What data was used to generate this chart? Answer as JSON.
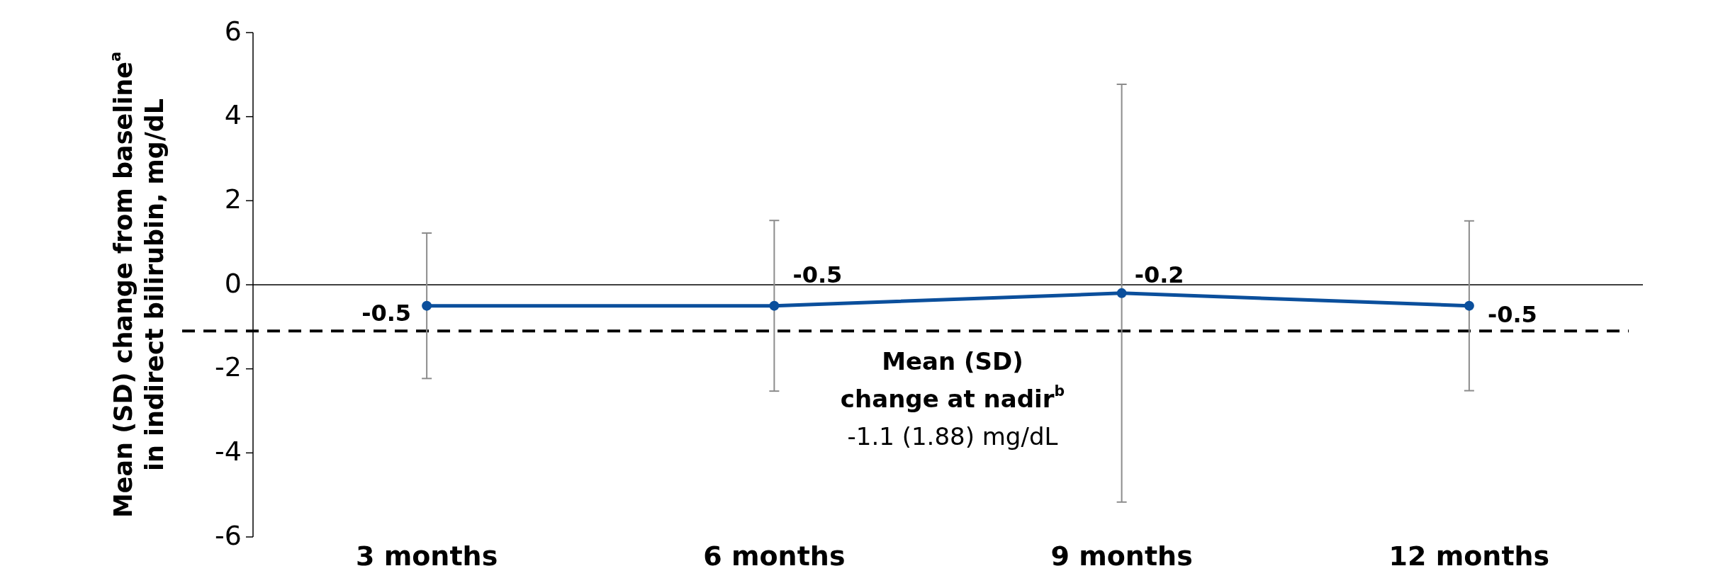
{
  "chart_data": {
    "type": "line",
    "ylabel": "Mean (SD) change from baseline$^{a}$\nin indirect bilirubin, mg/dL",
    "categories": [
      "3 months",
      "6 months",
      "9 months",
      "12 months"
    ],
    "series": [
      {
        "color": "#0b4f9c",
        "values": [
          -0.5,
          -0.5,
          -0.2,
          -0.5
        ],
        "errors": [
          1.73,
          2.03,
          4.97,
          2.02
        ]
      }
    ],
    "ylim": [
      -6,
      6
    ],
    "yticks": [
      -6,
      -4,
      -2,
      0,
      2,
      4,
      6
    ],
    "grid": false,
    "marker": "circle",
    "line_style": "solid",
    "data_labels": true,
    "ref_lines": [
      {
        "axis": "y",
        "value": -1.1,
        "label": "Mean (SD)\nchange at nadir$^{b}$\n-1.1 (1.88) mg/dL",
        "color": "#000000",
        "line_style": "dashed"
      }
    ]
  }
}
